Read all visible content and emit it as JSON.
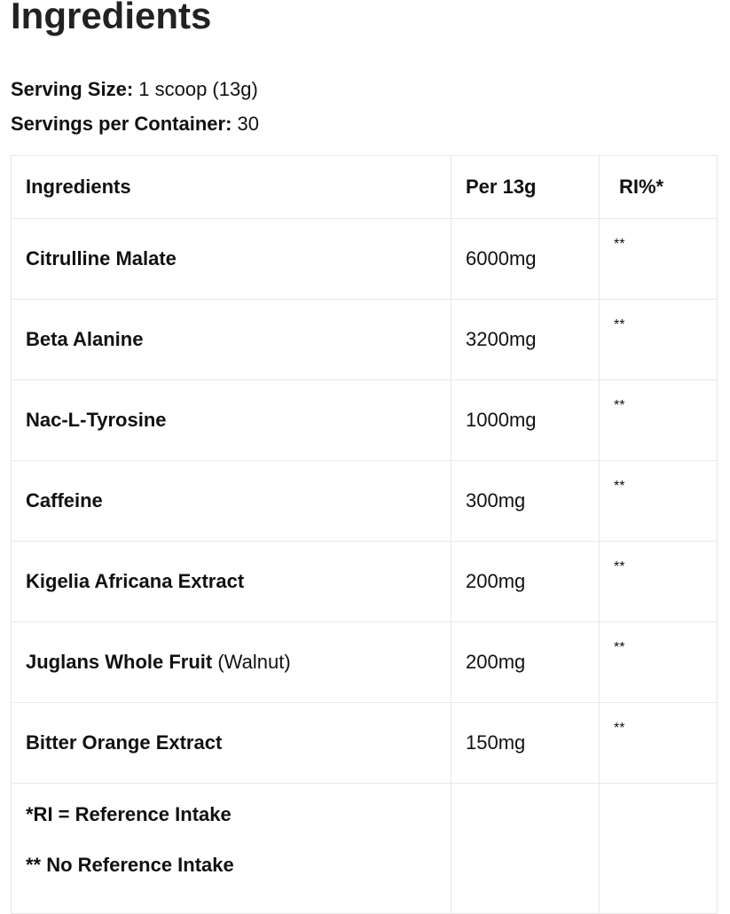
{
  "title": "Ingredients",
  "serving_size_label": "Serving Size:",
  "serving_size_value": " 1 scoop (13g)",
  "servings_label": "Servings per Container:",
  "servings_value": " 30",
  "table": {
    "headers": [
      "Ingredients",
      "Per 13g",
      "RI%*"
    ],
    "rows": [
      {
        "name": "Citrulline Malate",
        "note": "",
        "amount": "6000mg",
        "ri": "**"
      },
      {
        "name": "Beta Alanine",
        "note": "",
        "amount": "3200mg",
        "ri": "**"
      },
      {
        "name": "Nac-L-Tyrosine",
        "note": "",
        "amount": "1000mg",
        "ri": "**"
      },
      {
        "name": "Caffeine",
        "note": "",
        "amount": "300mg",
        "ri": "**"
      },
      {
        "name": "Kigelia Africana Extract",
        "note": "",
        "amount": "200mg",
        "ri": "**"
      },
      {
        "name": "Juglans Whole Fruit",
        "note": " (Walnut)",
        "amount": "200mg",
        "ri": "**"
      },
      {
        "name": "Bitter Orange Extract",
        "note": "",
        "amount": "150mg",
        "ri": "**"
      }
    ],
    "footnotes": [
      "*RI = Reference Intake",
      "** No Reference Intake"
    ]
  }
}
